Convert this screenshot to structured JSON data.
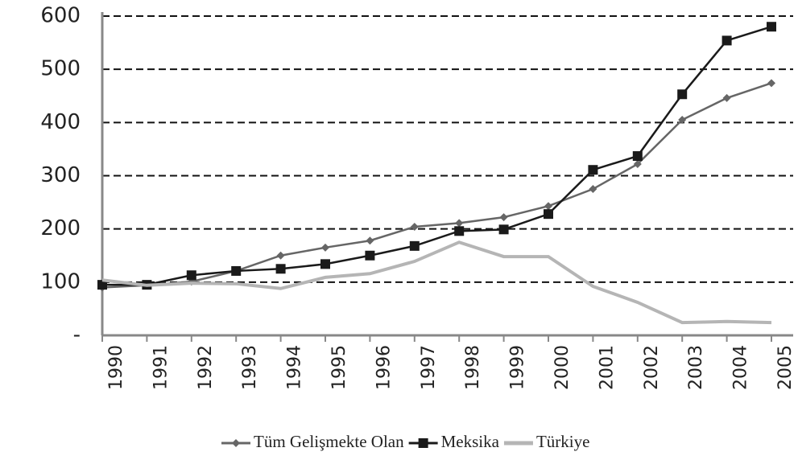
{
  "chart_data": {
    "type": "line",
    "categories": [
      "1990",
      "1991",
      "1992",
      "1993",
      "1994",
      "1995",
      "1996",
      "1997",
      "1998",
      "1999",
      "2000",
      "2001",
      "2002",
      "2003",
      "2004",
      "2005"
    ],
    "series": [
      {
        "name": "Tüm Gelişmekte Olan",
        "color": "#666666",
        "marker": "diamond",
        "values": [
          90,
          94,
          101,
          121,
          150,
          165,
          178,
          204,
          211,
          222,
          243,
          275,
          322,
          405,
          446,
          474
        ]
      },
      {
        "name": "Meksika",
        "color": "#1a1a1a",
        "marker": "square",
        "values": [
          95,
          95,
          113,
          121,
          125,
          134,
          150,
          168,
          196,
          199,
          228,
          311,
          337,
          453,
          554,
          580
        ]
      },
      {
        "name": "Türkiye",
        "color": "#b5b5b5",
        "values": [
          104,
          94,
          98,
          97,
          88,
          109,
          116,
          139,
          175,
          148,
          148,
          92,
          62,
          24,
          26,
          24
        ]
      }
    ],
    "ylim": [
      0,
      600
    ],
    "yticks": [
      {
        "value": 0,
        "label": "-"
      },
      100,
      200,
      300,
      400,
      500,
      600
    ],
    "grid": true,
    "legend": "bottom"
  }
}
